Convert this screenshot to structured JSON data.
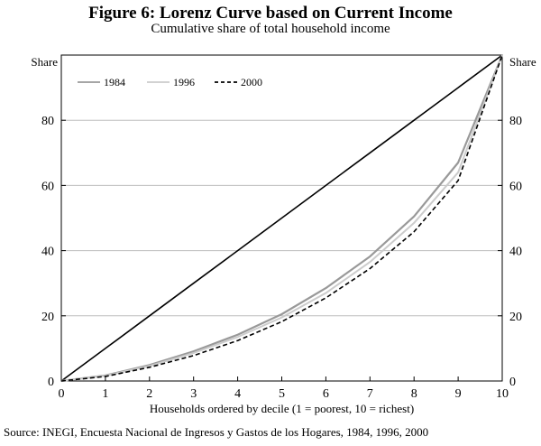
{
  "header": {
    "title": "Figure 6: Lorenz Curve based on Current Income",
    "subtitle": "Cumulative share of total household income"
  },
  "footer": {
    "source": "Source: INEGI, Encuesta Nacional de Ingresos y Gastos de los Hogares, 1984, 1996, 2000"
  },
  "chart_data": {
    "type": "line",
    "title": "Figure 6: Lorenz Curve based on Current Income",
    "subtitle": "Cumulative share of total household income",
    "xlabel": "Households ordered by decile (1 = poorest, 10 = richest)",
    "ylabel_left": "Share",
    "ylabel_right": "Share",
    "x": [
      0,
      1,
      2,
      3,
      4,
      5,
      6,
      7,
      8,
      9,
      10
    ],
    "xlim": [
      0,
      10
    ],
    "ylim": [
      0,
      100
    ],
    "xticks": [
      "0",
      "1",
      "2",
      "3",
      "4",
      "5",
      "6",
      "7",
      "8",
      "9",
      "10"
    ],
    "yticks": [
      "0",
      "20",
      "40",
      "60",
      "80"
    ],
    "grid": "horizontal",
    "legend_position": "top-left",
    "series": [
      {
        "name": "1984",
        "color": "#999999",
        "dash": "solid",
        "values": [
          0,
          1.7,
          4.9,
          9.1,
          14.2,
          20.5,
          28.5,
          38.2,
          50.5,
          67.0,
          100
        ]
      },
      {
        "name": "1996",
        "color": "#cccccc",
        "dash": "solid",
        "values": [
          0,
          1.6,
          4.6,
          8.6,
          13.5,
          19.5,
          27.0,
          36.5,
          48.5,
          64.0,
          100
        ]
      },
      {
        "name": "2000",
        "color": "#000000",
        "dash": "dashed",
        "values": [
          0,
          1.4,
          4.2,
          7.8,
          12.4,
          18.2,
          25.5,
          34.5,
          45.8,
          61.5,
          100
        ]
      }
    ],
    "reference_line": {
      "values": [
        0,
        10,
        20,
        30,
        40,
        50,
        60,
        70,
        80,
        90,
        100
      ]
    }
  }
}
